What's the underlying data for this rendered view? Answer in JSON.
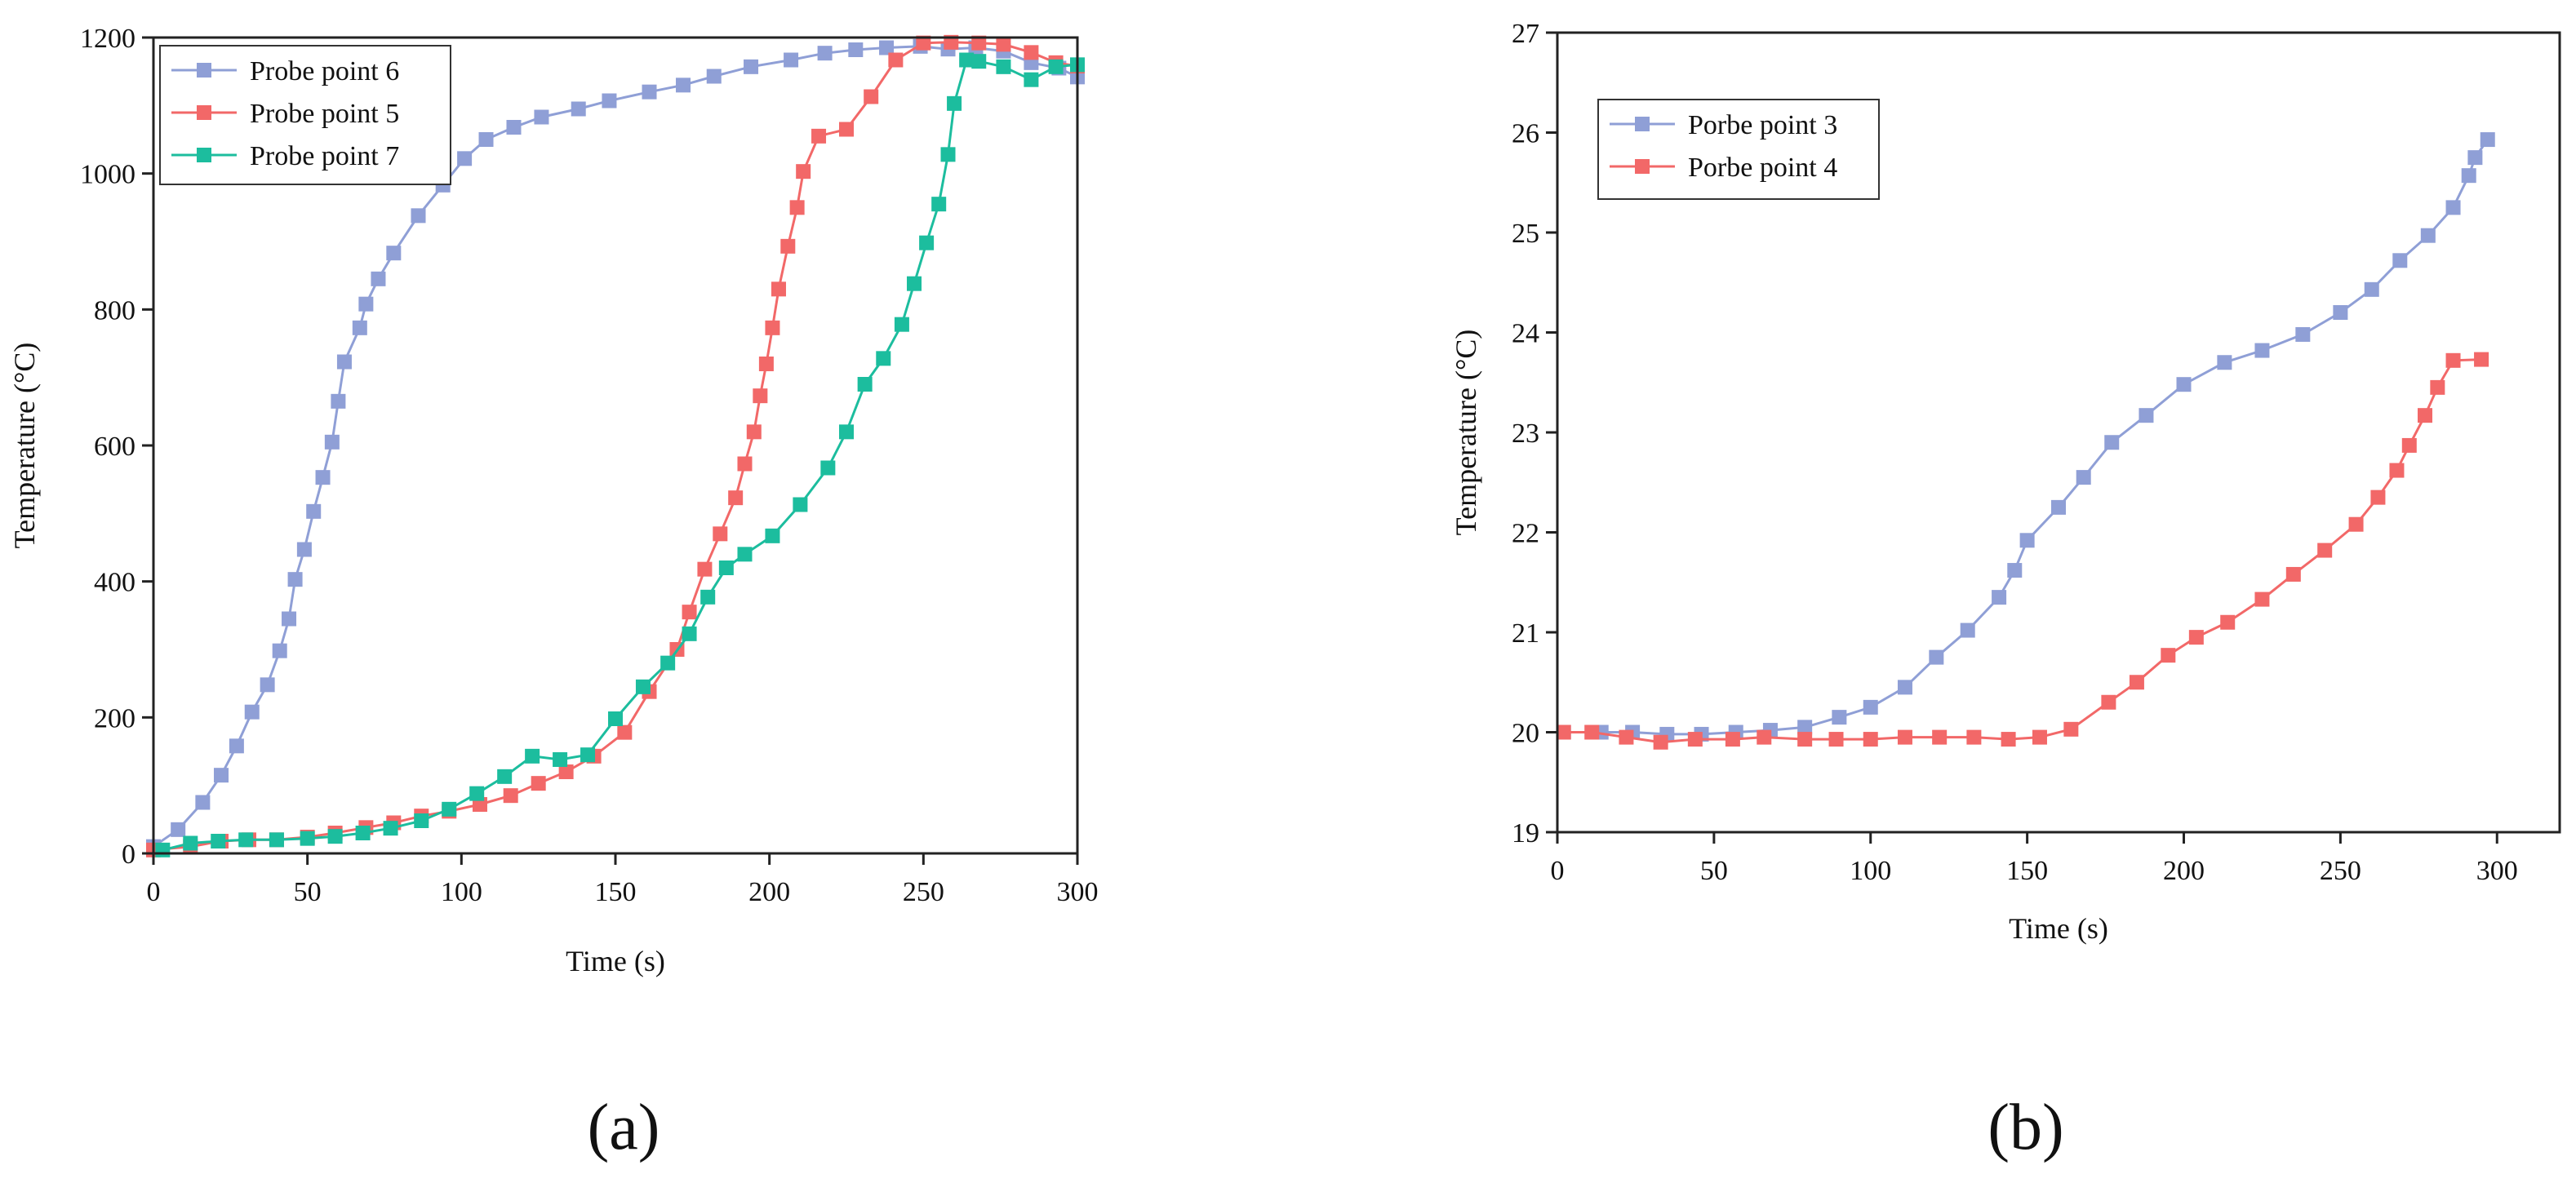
{
  "panels": {
    "a": {
      "caption": "(a)"
    },
    "b": {
      "caption": "(b)"
    }
  },
  "chart_data": [
    {
      "type": "line",
      "xlabel": "Time (s)",
      "ylabel": "Temperature (°C)",
      "xlim": [
        0,
        300
      ],
      "ylim": [
        0,
        1200
      ],
      "xticks": [
        0,
        50,
        100,
        150,
        200,
        250,
        300
      ],
      "yticks": [
        0,
        200,
        400,
        600,
        800,
        1000,
        1200
      ],
      "grid": false,
      "legend_position": "top-left",
      "series": [
        {
          "name": "Probe point 6",
          "color": "#8f9fd6",
          "x": [
            0,
            8,
            16,
            22,
            27,
            32,
            37,
            41,
            44,
            46,
            49,
            52,
            55,
            58,
            60,
            62,
            67,
            69,
            73,
            78,
            86,
            94,
            101,
            108,
            117,
            126,
            138,
            148,
            161,
            172,
            182,
            194,
            207,
            218,
            228,
            238,
            249,
            258,
            267,
            276,
            285,
            294,
            300
          ],
          "y": [
            10,
            35,
            75,
            115,
            158,
            208,
            248,
            298,
            345,
            403,
            447,
            503,
            553,
            605,
            665,
            723,
            773,
            808,
            845,
            883,
            938,
            983,
            1022,
            1050,
            1068,
            1083,
            1095,
            1107,
            1120,
            1130,
            1143,
            1157,
            1167,
            1177,
            1182,
            1185,
            1187,
            1183,
            1185,
            1180,
            1163,
            1155,
            1142
          ]
        },
        {
          "name": "Probe point 5",
          "color": "#f26868",
          "x": [
            0,
            12,
            22,
            31,
            40,
            50,
            59,
            69,
            78,
            87,
            96,
            106,
            116,
            125,
            134,
            143,
            153,
            161,
            170,
            174,
            179,
            184,
            189,
            192,
            195,
            197,
            199,
            201,
            203,
            206,
            209,
            211,
            216,
            225,
            233,
            241,
            250,
            259,
            268,
            276,
            285,
            293,
            300
          ],
          "y": [
            5,
            10,
            18,
            20,
            20,
            24,
            30,
            38,
            45,
            55,
            62,
            72,
            85,
            103,
            120,
            143,
            178,
            238,
            300,
            355,
            418,
            470,
            523,
            573,
            620,
            673,
            720,
            773,
            830,
            893,
            950,
            1003,
            1055,
            1065,
            1113,
            1167,
            1192,
            1193,
            1192,
            1190,
            1178,
            1163,
            1158
          ]
        },
        {
          "name": "Probe point 7",
          "color": "#1cbd9e",
          "x": [
            3,
            12,
            21,
            30,
            40,
            50,
            59,
            68,
            77,
            87,
            96,
            105,
            114,
            123,
            132,
            141,
            150,
            159,
            167,
            174,
            180,
            186,
            192,
            201,
            210,
            219,
            225,
            231,
            237,
            243,
            247,
            251,
            255,
            258,
            260,
            264,
            268,
            276,
            285,
            293,
            300
          ],
          "y": [
            5,
            15,
            18,
            20,
            20,
            22,
            25,
            30,
            37,
            48,
            65,
            88,
            113,
            143,
            138,
            145,
            198,
            245,
            280,
            323,
            377,
            420,
            440,
            467,
            513,
            567,
            620,
            690,
            728,
            778,
            838,
            898,
            955,
            1028,
            1103,
            1167,
            1165,
            1157,
            1138,
            1157,
            1160
          ]
        }
      ]
    },
    {
      "type": "line",
      "xlabel": "Time (s)",
      "ylabel": "Temperature (°C)",
      "xlim": [
        0,
        320
      ],
      "ylim": [
        19,
        27
      ],
      "xticks": [
        0,
        50,
        100,
        150,
        200,
        250,
        300
      ],
      "yticks": [
        19,
        20,
        21,
        22,
        23,
        24,
        25,
        26,
        27
      ],
      "grid": false,
      "legend_position": "top-left",
      "series": [
        {
          "name": "Porbe point 3",
          "color": "#8f9fd6",
          "x": [
            2,
            14,
            24,
            35,
            46,
            57,
            68,
            79,
            90,
            100,
            111,
            121,
            131,
            141,
            146,
            150,
            160,
            168,
            177,
            188,
            200,
            213,
            225,
            238,
            250,
            260,
            269,
            278,
            286,
            291,
            293,
            297
          ],
          "y": [
            20.0,
            20.0,
            20.0,
            19.98,
            19.98,
            20.0,
            20.02,
            20.05,
            20.15,
            20.25,
            20.45,
            20.75,
            21.02,
            21.35,
            21.62,
            21.92,
            22.25,
            22.55,
            22.9,
            23.17,
            23.48,
            23.7,
            23.82,
            23.98,
            24.2,
            24.43,
            24.72,
            24.97,
            25.25,
            25.57,
            25.75,
            25.93
          ]
        },
        {
          "name": "Porbe point 4",
          "color": "#f26868",
          "x": [
            2,
            11,
            22,
            33,
            44,
            56,
            66,
            79,
            89,
            100,
            111,
            122,
            133,
            144,
            154,
            164,
            176,
            185,
            195,
            204,
            214,
            225,
            235,
            245,
            255,
            262,
            268,
            272,
            277,
            281,
            286,
            295
          ],
          "y": [
            20.0,
            20.0,
            19.95,
            19.9,
            19.93,
            19.93,
            19.95,
            19.93,
            19.93,
            19.93,
            19.95,
            19.95,
            19.95,
            19.93,
            19.95,
            20.03,
            20.3,
            20.5,
            20.77,
            20.95,
            21.1,
            21.33,
            21.58,
            21.82,
            22.08,
            22.35,
            22.62,
            22.87,
            23.17,
            23.45,
            23.72,
            23.73
          ]
        }
      ]
    }
  ]
}
